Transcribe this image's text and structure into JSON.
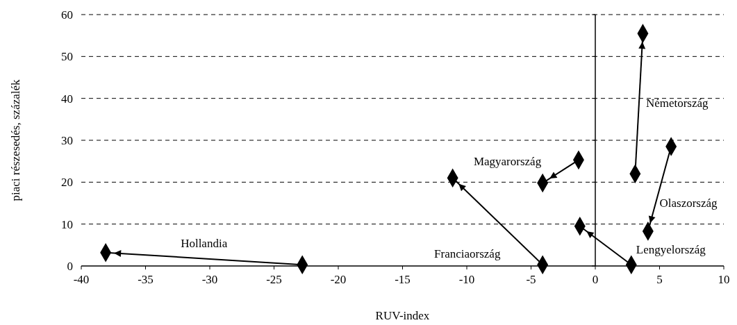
{
  "chart_data": {
    "type": "line",
    "xlabel": "RUV-index",
    "ylabel": "piaci részesedés, százalék",
    "xlim": [
      -40,
      10
    ],
    "xticks": [
      -40,
      -35,
      -30,
      -25,
      -20,
      -15,
      -10,
      -5,
      0,
      5,
      10
    ],
    "ylim": [
      0,
      60
    ],
    "yticks": [
      0,
      10,
      20,
      30,
      40,
      50,
      60
    ],
    "grid": "y",
    "marker": "diamond",
    "series": [
      {
        "name": "Hollandia",
        "color": "#000000",
        "x": [
          -22.8,
          -38.1
        ],
        "values": [
          0.3,
          3.2
        ]
      },
      {
        "name": "Franciaország",
        "color": "#000000",
        "x": [
          -4.1,
          -11.1
        ],
        "values": [
          0.3,
          21
        ]
      },
      {
        "name": "Magyarország",
        "color": "#000000",
        "x": [
          -1.3,
          -4.1
        ],
        "values": [
          25.3,
          19.8
        ]
      },
      {
        "name": "Lengyelország",
        "color": "#000000",
        "x": [
          2.8,
          -1.2
        ],
        "values": [
          0.3,
          9.5
        ]
      },
      {
        "name": "Olaszország",
        "color": "#000000",
        "x": [
          5.9,
          4.1
        ],
        "values": [
          28.5,
          8.3
        ]
      },
      {
        "name": "Németország",
        "color": "#000000",
        "x": [
          3.1,
          3.7
        ],
        "values": [
          22,
          55.5
        ]
      }
    ]
  }
}
